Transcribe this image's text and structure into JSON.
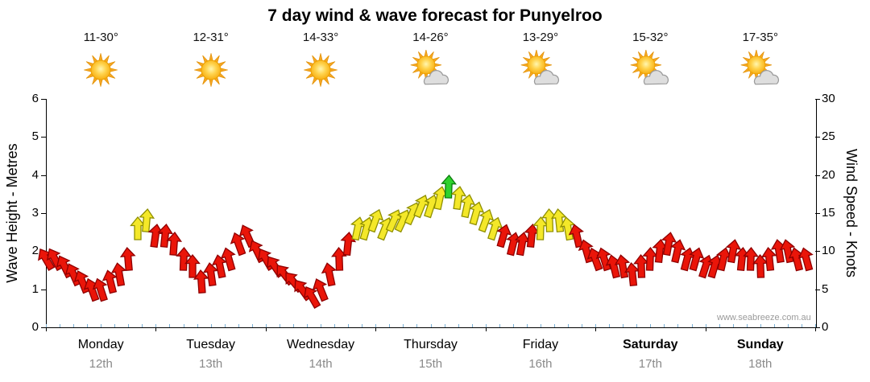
{
  "title": "7 day wind & wave forecast for Punyelroo",
  "watermark": "www.seabreeze.com.au",
  "axes": {
    "left_title": "Wave Height - Metres",
    "right_title": "Wind Speed - Knots",
    "left_ticks": [
      0,
      1,
      2,
      3,
      4,
      5,
      6
    ],
    "right_ticks": [
      0,
      5,
      10,
      15,
      20,
      25,
      30
    ],
    "left_range": [
      0,
      6
    ],
    "right_range": [
      0,
      30
    ]
  },
  "days": [
    {
      "name": "Monday",
      "date": "12th",
      "temp": "11-30°",
      "icon": "sun",
      "bold": false
    },
    {
      "name": "Tuesday",
      "date": "13th",
      "temp": "12-31°",
      "icon": "sun",
      "bold": false
    },
    {
      "name": "Wednesday",
      "date": "14th",
      "temp": "14-33°",
      "icon": "sun",
      "bold": false
    },
    {
      "name": "Thursday",
      "date": "15th",
      "temp": "14-26°",
      "icon": "sun-cloud",
      "bold": false
    },
    {
      "name": "Friday",
      "date": "16th",
      "temp": "13-29°",
      "icon": "sun-cloud",
      "bold": false
    },
    {
      "name": "Saturday",
      "date": "17th",
      "temp": "15-32°",
      "icon": "sun-cloud",
      "bold": true
    },
    {
      "name": "Sunday",
      "date": "18th",
      "temp": "17-35°",
      "icon": "sun-cloud",
      "bold": true
    }
  ],
  "chart_data": {
    "type": "wind-arrow-series",
    "x_unit": "days (0 = Monday 12th)",
    "y_unit": "knots",
    "ylim": [
      0,
      30
    ],
    "thresholds": {
      "yellow_min": 12.5,
      "green_min": 17.5
    },
    "colors": {
      "red_fill": "#ea1509",
      "red_stroke": "#8f0000",
      "yellow_fill": "#f4e829",
      "yellow_stroke": "#8f8f00",
      "green_fill": "#2ed22e",
      "green_stroke": "#0c7a0c",
      "minor_tick": "#7ab0d4"
    },
    "points_format": [
      "t_days",
      "knots",
      "dir_deg"
    ],
    "points": [
      [
        0.0,
        9,
        -30
      ],
      [
        0.083,
        9,
        -28
      ],
      [
        0.167,
        8,
        -26
      ],
      [
        0.25,
        7,
        -24
      ],
      [
        0.333,
        6,
        -22
      ],
      [
        0.417,
        5,
        -20
      ],
      [
        0.5,
        5,
        -18
      ],
      [
        0.583,
        6,
        -14
      ],
      [
        0.667,
        7,
        -10
      ],
      [
        0.75,
        9,
        -5
      ],
      [
        0.833,
        13,
        0
      ],
      [
        0.917,
        14,
        5
      ],
      [
        1.0,
        12,
        8
      ],
      [
        1.083,
        12,
        6
      ],
      [
        1.167,
        11,
        4
      ],
      [
        1.25,
        9,
        2
      ],
      [
        1.333,
        8,
        0
      ],
      [
        1.417,
        6,
        -4
      ],
      [
        1.5,
        7,
        -8
      ],
      [
        1.583,
        8,
        -12
      ],
      [
        1.667,
        9,
        -16
      ],
      [
        1.75,
        11,
        -20
      ],
      [
        1.833,
        12,
        -24
      ],
      [
        1.917,
        10,
        -26
      ],
      [
        2.0,
        9,
        -30
      ],
      [
        2.083,
        8,
        -34
      ],
      [
        2.167,
        7,
        -38
      ],
      [
        2.25,
        6,
        -40
      ],
      [
        2.333,
        5,
        -36
      ],
      [
        2.417,
        4,
        -30
      ],
      [
        2.5,
        5,
        -22
      ],
      [
        2.583,
        7,
        -12
      ],
      [
        2.667,
        9,
        -2
      ],
      [
        2.75,
        11,
        6
      ],
      [
        2.833,
        13,
        12
      ],
      [
        2.917,
        13,
        16
      ],
      [
        3.0,
        14,
        20
      ],
      [
        3.083,
        13,
        22
      ],
      [
        3.167,
        14,
        24
      ],
      [
        3.25,
        14,
        25
      ],
      [
        3.333,
        15,
        24
      ],
      [
        3.417,
        16,
        22
      ],
      [
        3.5,
        16,
        18
      ],
      [
        3.583,
        17,
        12
      ],
      [
        3.667,
        18.5,
        2
      ],
      [
        3.75,
        17,
        8
      ],
      [
        3.833,
        16,
        12
      ],
      [
        3.917,
        15,
        16
      ],
      [
        4.0,
        14,
        20
      ],
      [
        4.083,
        13,
        18
      ],
      [
        4.167,
        12,
        16
      ],
      [
        4.25,
        11,
        14
      ],
      [
        4.333,
        11,
        10
      ],
      [
        4.417,
        12,
        6
      ],
      [
        4.5,
        13,
        2
      ],
      [
        4.583,
        14,
        -2
      ],
      [
        4.667,
        14,
        -6
      ],
      [
        4.75,
        13,
        -10
      ],
      [
        4.833,
        12,
        -13
      ],
      [
        4.917,
        10,
        -16
      ],
      [
        5.0,
        9,
        -20
      ],
      [
        5.083,
        9,
        -17
      ],
      [
        5.167,
        8,
        -14
      ],
      [
        5.25,
        8,
        -10
      ],
      [
        5.333,
        7,
        -6
      ],
      [
        5.417,
        8,
        -2
      ],
      [
        5.5,
        9,
        2
      ],
      [
        5.583,
        10,
        6
      ],
      [
        5.667,
        11,
        10
      ],
      [
        5.75,
        10,
        13
      ],
      [
        5.833,
        9,
        15
      ],
      [
        5.917,
        9,
        16
      ],
      [
        6.0,
        8,
        18
      ],
      [
        6.083,
        8,
        16
      ],
      [
        6.167,
        9,
        13
      ],
      [
        6.25,
        10,
        10
      ],
      [
        6.333,
        9,
        6
      ],
      [
        6.417,
        9,
        2
      ],
      [
        6.5,
        8,
        -2
      ],
      [
        6.583,
        9,
        -6
      ],
      [
        6.667,
        10,
        -9
      ],
      [
        6.75,
        10,
        -12
      ],
      [
        6.833,
        9,
        -14
      ],
      [
        6.917,
        9,
        -15
      ]
    ]
  }
}
